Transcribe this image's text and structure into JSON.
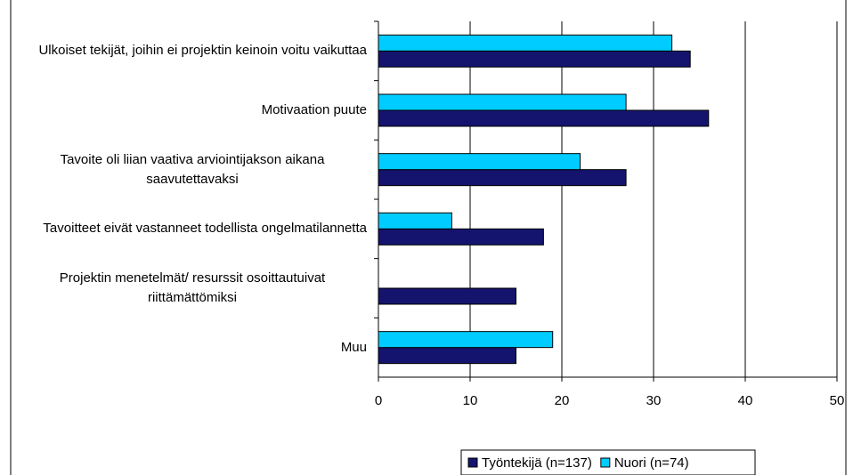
{
  "chart_data": {
    "type": "hbar",
    "categories": [
      "Ulkoiset tekijät, joihin ei projektin keinoin voitu vaikuttaa",
      "Motivaation puute",
      "Tavoite oli liian vaativa arviointijakson aikana saavutettavaksi",
      "Tavoitteet eivät vastanneet todellista ongelmatilannetta",
      "Projektin menetelmät/ resurssit osoittautuivat riittämättömiksi",
      "Muu"
    ],
    "series": [
      {
        "name": "Työntekijä (n=137)",
        "color": "#14146e",
        "values": [
          34,
          36,
          27,
          18,
          15,
          15
        ]
      },
      {
        "name": "Nuori (n=74)",
        "color": "#00ccff",
        "values": [
          32,
          27,
          22,
          8,
          0,
          19
        ]
      }
    ],
    "xlim": [
      0,
      50
    ],
    "xticks": [
      0,
      10,
      20,
      30,
      40,
      50
    ],
    "grid": true,
    "legend": "bottom"
  }
}
